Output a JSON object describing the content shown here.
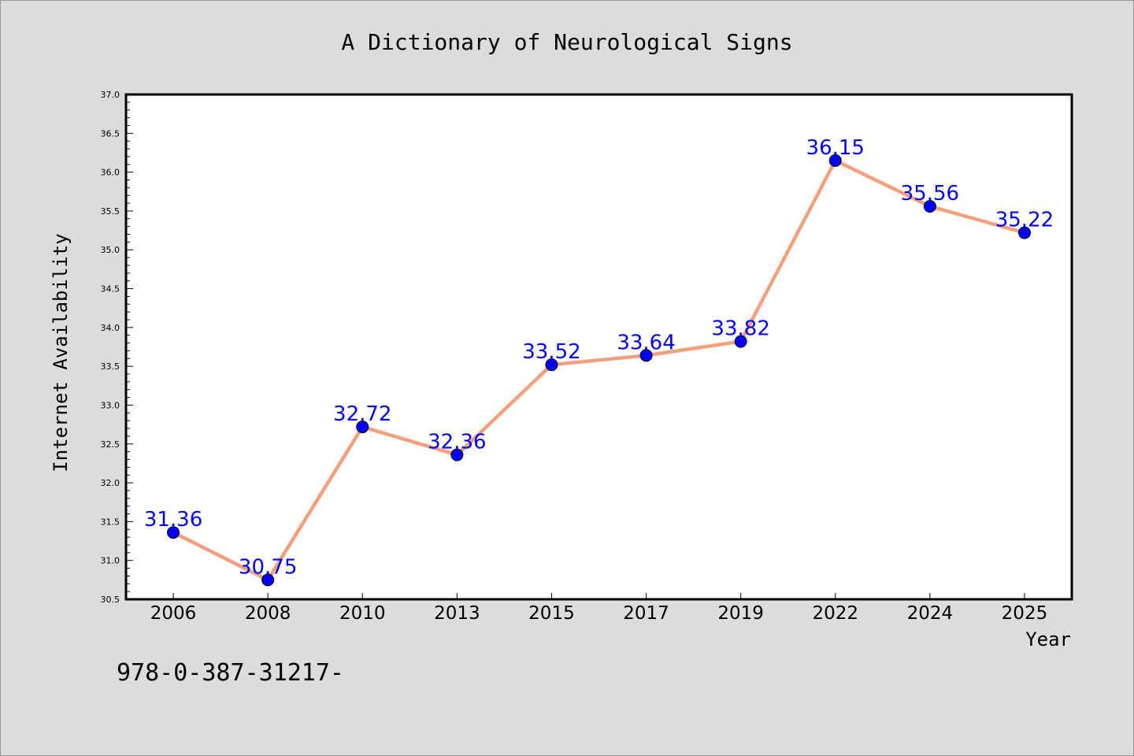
{
  "chart_data": {
    "type": "line",
    "title": "A Dictionary of Neurological Signs",
    "xlabel": "Year",
    "ylabel": "Internet Availability",
    "categories": [
      "2006",
      "2008",
      "2010",
      "2013",
      "2015",
      "2017",
      "2019",
      "2022",
      "2024",
      "2025"
    ],
    "values": [
      31.36,
      30.75,
      32.72,
      32.36,
      33.52,
      33.64,
      33.82,
      36.15,
      35.56,
      35.22
    ],
    "data_labels": [
      "31.36",
      "30.75",
      "32.72",
      "32.36",
      "33.52",
      "33.64",
      "33.82",
      "36.15",
      "35.56",
      "35.22"
    ],
    "ylim": [
      30.5,
      37.0
    ],
    "yticks": [
      "30.5",
      "31.0",
      "31.5",
      "32.0",
      "32.5",
      "33.0",
      "33.5",
      "34.0",
      "34.5",
      "35.0",
      "35.5",
      "36.0",
      "36.5",
      "37.0"
    ],
    "grid": false,
    "colors": {
      "line": "#f4a07c",
      "marker": "#0000ff",
      "data_label": "#0000ff",
      "plot_bg": "#ffffff",
      "page_bg": "#dcdcdc"
    }
  },
  "footnote": "978-0-387-31217-"
}
